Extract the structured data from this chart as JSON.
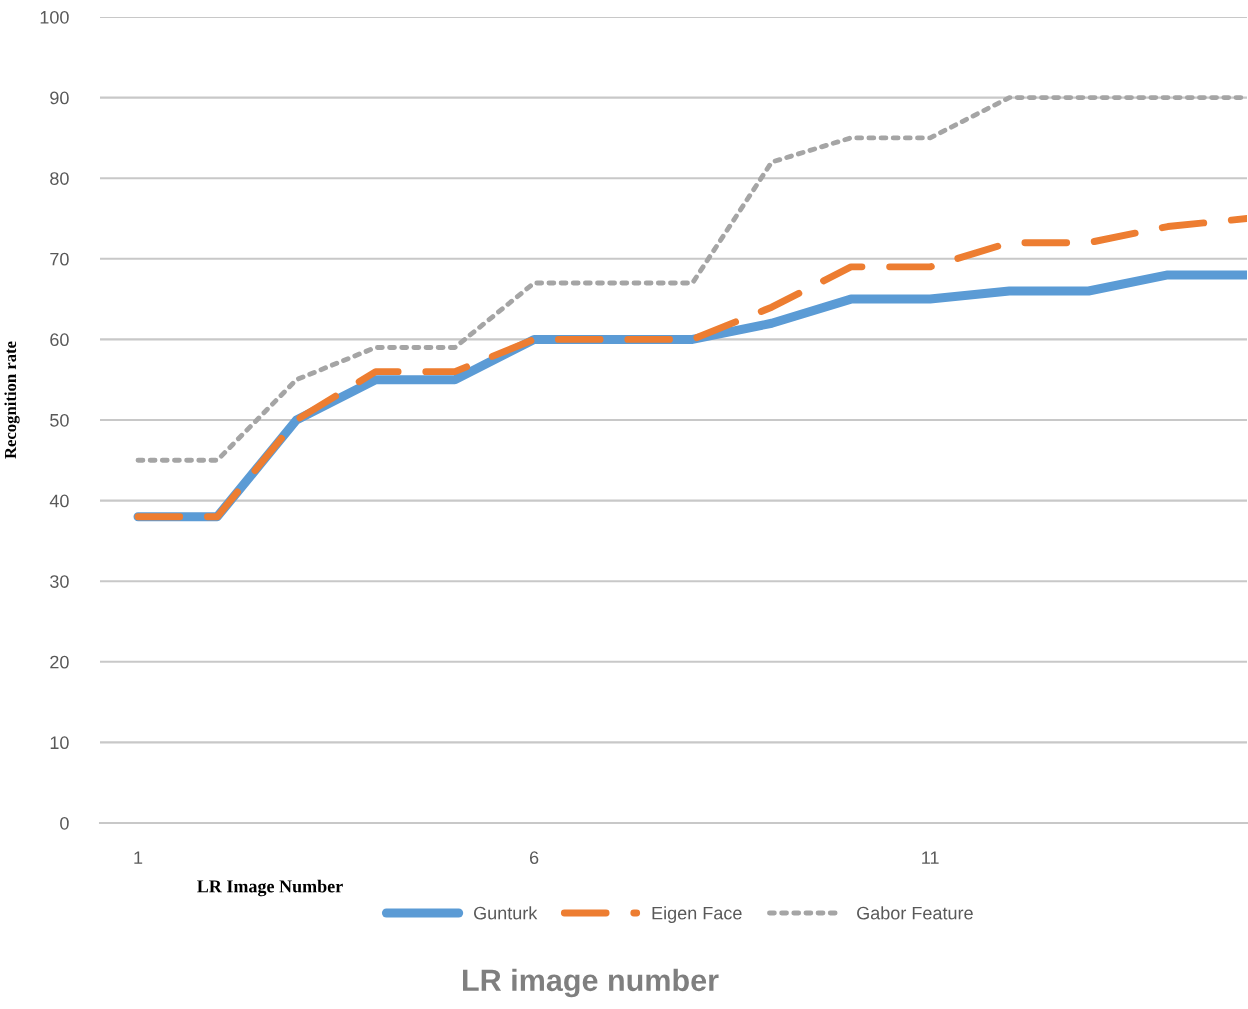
{
  "chart_data": {
    "type": "line",
    "ylabel": "Recognition rate",
    "xlabel": "LR Image Number",
    "annotations": [
      "LR image number"
    ],
    "categories": [
      "1",
      null,
      null,
      null,
      null,
      "6",
      null,
      null,
      null,
      null,
      "11",
      null,
      null,
      null,
      null
    ],
    "series": [
      {
        "name": "Gunturk",
        "color": "#5b9bd5",
        "line_style": "solid",
        "values": [
          38,
          38,
          50,
          55,
          55,
          60,
          60,
          60,
          62,
          65,
          65,
          66,
          66,
          68,
          68
        ]
      },
      {
        "name": "Eigen Face",
        "color": "#ed7d31",
        "line_style": "dashed",
        "values": [
          38,
          38,
          50,
          56,
          56,
          60,
          60,
          60,
          64,
          69,
          69,
          72,
          72,
          74,
          75
        ]
      },
      {
        "name": "Gabor Feature",
        "color": "#a5a5a5",
        "line_style": "dotted",
        "values": [
          45,
          45,
          55,
          59,
          59,
          67,
          67,
          67,
          82,
          85,
          85,
          90,
          90,
          90,
          90
        ]
      }
    ],
    "ylim": [
      0,
      100
    ],
    "yticks": [
      0,
      10,
      20,
      30,
      40,
      50,
      60,
      70,
      80,
      90,
      100
    ],
    "grid": "y",
    "legend": "bottom",
    "marker": "none"
  }
}
